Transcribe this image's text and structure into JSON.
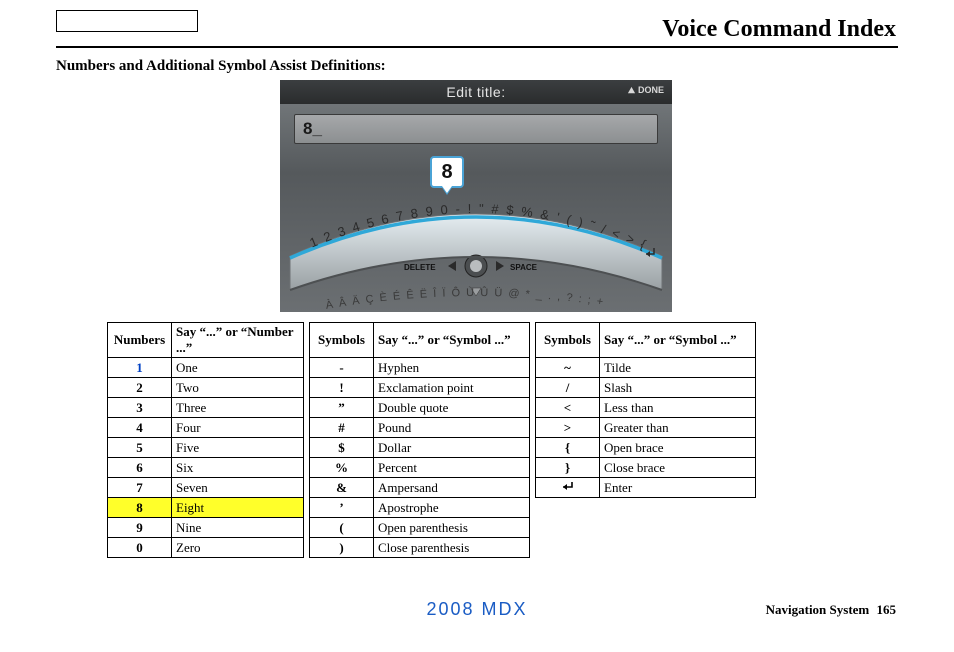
{
  "header": {
    "title": "Voice Command Index"
  },
  "subtitle": "Numbers and Additional Symbol Assist Definitions:",
  "screen": {
    "title": "Edit title:",
    "done_label": "DONE",
    "input_value": "8_",
    "callout_char": "8",
    "arc_chars": "1234567890-!\"#$%&'()~/<>{}",
    "delete_label": "DELETE",
    "space_label": "SPACE",
    "alt_row": "ÀÂÄÇÈÉÊËÎÏÔÙÛÜ@ *_ .,?:;+",
    "colors": {
      "bg_top": "#7a7f82",
      "bg_bottom": "#6b6f72",
      "bar_dark": "#2a2c2d",
      "arc_stroke": "#2fa8d8",
      "arc_fill_top": "#e6eef2",
      "arc_fill_bottom": "#9aa0a3",
      "text_light": "#e4e4e4"
    }
  },
  "table": {
    "headers": {
      "numbers": "Numbers",
      "numbers_say": "Say “...” or “Number ...”",
      "symbols": "Symbols",
      "symbols_say": "Say “...” or “Symbol ...”"
    },
    "highlight_color": "#ffff2a",
    "link_color": "#0041c4",
    "rows": [
      {
        "num": "1",
        "numw": "One",
        "num_blue": true,
        "sym": "-",
        "symw": "Hyphen",
        "sym2": "~",
        "symw2": "Tilde"
      },
      {
        "num": "2",
        "numw": "Two",
        "sym": "!",
        "symw": "Exclamation point",
        "sym2": "/",
        "symw2": "Slash"
      },
      {
        "num": "3",
        "numw": "Three",
        "sym": "”",
        "symw": "Double quote",
        "sym2": "<",
        "symw2": "Less than"
      },
      {
        "num": "4",
        "numw": "Four",
        "sym": "#",
        "symw": "Pound",
        "sym2": ">",
        "symw2": "Greater than"
      },
      {
        "num": "5",
        "numw": "Five",
        "sym": "$",
        "symw": "Dollar",
        "sym2": "{",
        "symw2": "Open brace"
      },
      {
        "num": "6",
        "numw": "Six",
        "sym": "%",
        "symw": "Percent",
        "sym2": "}",
        "symw2": "Close brace"
      },
      {
        "num": "7",
        "numw": "Seven",
        "sym": "&",
        "symw": "Ampersand",
        "sym2": "enter-icon",
        "symw2": "Enter"
      },
      {
        "num": "8",
        "numw": "Eight",
        "highlight": true,
        "sym": "’",
        "symw": "Apostrophe"
      },
      {
        "num": "9",
        "numw": "Nine",
        "sym": "(",
        "symw": "Open parenthesis"
      },
      {
        "num": "0",
        "numw": "Zero",
        "sym": ")",
        "symw": "Close parenthesis"
      }
    ]
  },
  "footer": {
    "model": "2008  MDX",
    "nav_label": "Navigation System",
    "page_number": "165"
  }
}
